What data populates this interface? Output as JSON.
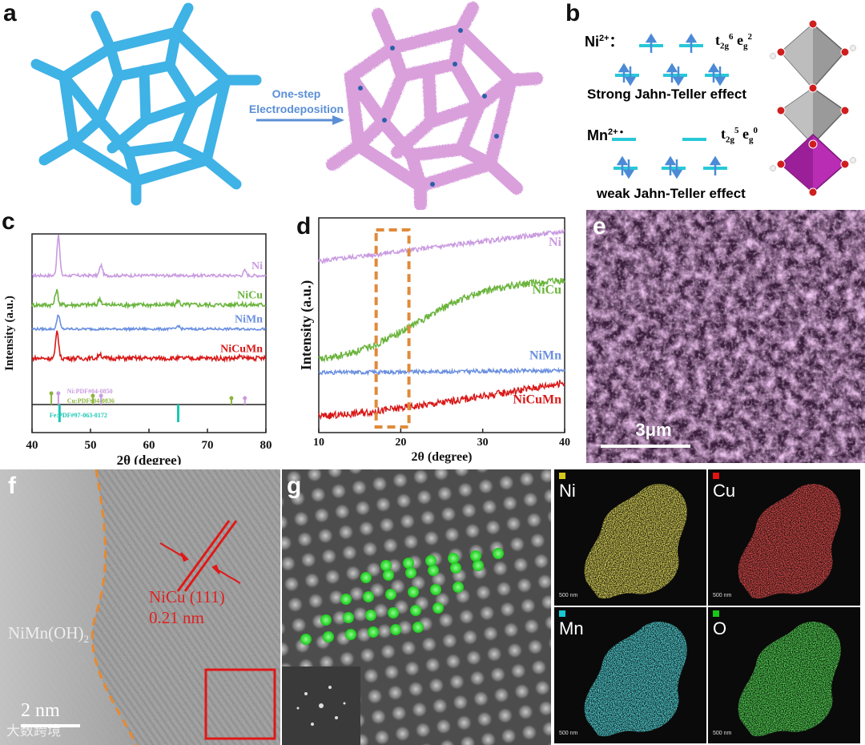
{
  "panel_labels": {
    "a": "a",
    "b": "b",
    "c": "c",
    "d": "d",
    "e": "e",
    "f": "f",
    "g": "g"
  },
  "panel_a": {
    "arrow_line1": "One-step",
    "arrow_line2": "Electrodeposition"
  },
  "panel_b": {
    "ni_ion": "Ni",
    "ni_charge": "2+",
    "ni_colon": "：",
    "ni_config_t": "t",
    "ni_config_t_sub": "2g",
    "ni_config_t_sup": "6",
    "ni_config_e": "e",
    "ni_config_e_sub": "g",
    "ni_config_e_sup": "2",
    "ni_effect": "Strong Jahn-Teller effect",
    "mn_ion": "Mn",
    "mn_charge": "2+",
    "mn_colon": "：",
    "mn_config_t": "t",
    "mn_config_t_sub": "2g",
    "mn_config_t_sup": "5",
    "mn_config_e": "e",
    "mn_config_e_sub": "g",
    "mn_config_e_sup": "0",
    "mn_effect": "weak Jahn-Teller effect"
  },
  "panel_e": {
    "scale_bar": "3μm"
  },
  "panel_f": {
    "phase_label": "NiMn(OH)",
    "phase_sub": "2",
    "plane_label": "NiCu (111)",
    "spacing": "0.21 nm",
    "scale_bar": "2 nm"
  },
  "panel_g_maps": [
    {
      "element": "Ni",
      "color": "#d8c81c",
      "scale": "500 nm"
    },
    {
      "element": "Cu",
      "color": "#e01414",
      "scale": "500 nm"
    },
    {
      "element": "Mn",
      "color": "#18c8d0",
      "scale": "500 nm"
    },
    {
      "element": "O",
      "color": "#18c818",
      "scale": "500 nm"
    }
  ],
  "watermark": "大数跨境",
  "chart_data": [
    {
      "panel": "c",
      "type": "line",
      "xlabel": "2θ (degree)",
      "ylabel": "Intensity (a.u.)",
      "xlim": [
        40,
        80
      ],
      "x_ticks": [
        40,
        50,
        60,
        70,
        80
      ],
      "series": [
        {
          "name": "Ni",
          "color": "#c99ae0",
          "offset": 0.9,
          "peaks": [
            [
              44.5,
              0.95
            ],
            [
              51.8,
              0.25
            ],
            [
              76.4,
              0.12
            ]
          ],
          "noise": 0.01
        },
        {
          "name": "NiCu",
          "color": "#6ab43c",
          "offset": 0.67,
          "peaks": [
            [
              44.2,
              0.35
            ],
            [
              51.6,
              0.15
            ],
            [
              65.0,
              0.1
            ],
            [
              75.0,
              0.05
            ]
          ],
          "noise": 0.015
        },
        {
          "name": "NiMn",
          "color": "#6a8fe0",
          "offset": 0.48,
          "peaks": [
            [
              44.5,
              0.35
            ],
            [
              65.0,
              0.08
            ]
          ],
          "noise": 0.008
        },
        {
          "name": "NiCuMn",
          "color": "#d81818",
          "offset": 0.25,
          "peaks": [
            [
              44.3,
              0.65
            ],
            [
              51.6,
              0.12
            ],
            [
              75.5,
              0.05
            ]
          ],
          "noise": 0.015
        }
      ],
      "references": [
        {
          "label": "Ni:PDF#04-0850",
          "color": "#c99ae0",
          "positions": [
            44.5,
            51.8,
            76.4
          ]
        },
        {
          "label": "Cu:PDF#04-0836",
          "color": "#8cb43c",
          "positions": [
            43.3,
            50.4,
            74.1
          ]
        },
        {
          "label": "Fe:PDF#97-063-0172",
          "color": "#18c8b4",
          "positions": [
            44.7,
            65.0
          ]
        }
      ]
    },
    {
      "panel": "d",
      "type": "line",
      "xlabel": "2θ (degree)",
      "ylabel": "Intensity (a.u.)",
      "xlim": [
        10,
        40
      ],
      "x_ticks": [
        10,
        20,
        30,
        40
      ],
      "highlight_range": [
        17,
        21
      ],
      "series": [
        {
          "name": "Ni",
          "color": "#c99ae0",
          "start": 0.83,
          "end": 0.98,
          "noise": 0.012
        },
        {
          "name": "NiCu",
          "color": "#6ab43c",
          "start": 0.35,
          "end": 0.78,
          "noise": 0.018
        },
        {
          "name": "NiMn",
          "color": "#6a8fe0",
          "start": 0.27,
          "end": 0.28,
          "noise": 0.01
        },
        {
          "name": "NiCuMn",
          "color": "#d81818",
          "start": 0.05,
          "end": 0.22,
          "noise": 0.018
        }
      ]
    }
  ]
}
